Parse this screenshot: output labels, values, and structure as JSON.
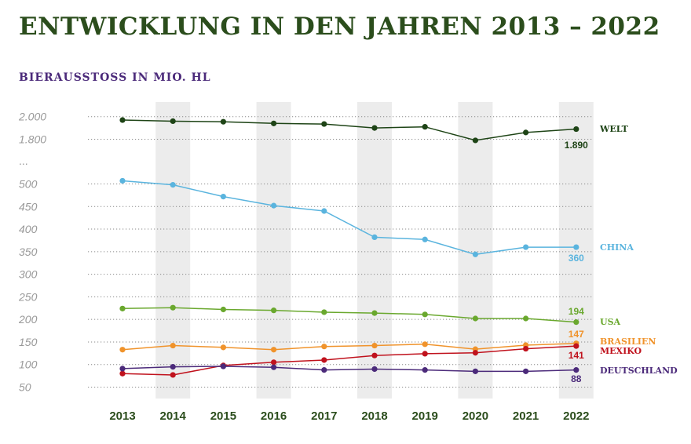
{
  "title": "ENTWICKLUNG IN DEN JAHREN 2013 – 2022",
  "subtitle": "BIERAUSSTOSS IN MIO. HL",
  "chart_data": {
    "type": "line",
    "title": "ENTWICKLUNG IN DEN JAHREN 2013 – 2022",
    "subtitle": "BIERAUSSTOSS IN MIO. HL",
    "ylabel": "Bierausstoss in Mio. hl",
    "x": [
      "2013",
      "2014",
      "2015",
      "2016",
      "2017",
      "2018",
      "2019",
      "2020",
      "2021",
      "2022"
    ],
    "y_axis": {
      "break_label": "...",
      "upper_ticks": [
        {
          "value": 2000,
          "label": "2.000"
        },
        {
          "value": 1800,
          "label": "1.800"
        }
      ],
      "lower_ticks": [
        {
          "value": 500,
          "label": "500"
        },
        {
          "value": 450,
          "label": "450"
        },
        {
          "value": 400,
          "label": "400"
        },
        {
          "value": 350,
          "label": "350"
        },
        {
          "value": 300,
          "label": "300"
        },
        {
          "value": 250,
          "label": "250"
        },
        {
          "value": 200,
          "label": "200"
        },
        {
          "value": 150,
          "label": "150"
        },
        {
          "value": 100,
          "label": "100"
        },
        {
          "value": 50,
          "label": "50"
        }
      ]
    },
    "series": [
      {
        "name": "WELT",
        "color": "#1e4416",
        "segment": "upper",
        "values": [
          1970,
          1960,
          1955,
          1940,
          1935,
          1900,
          1910,
          1790,
          1860,
          1890
        ],
        "end_label": "1.890"
      },
      {
        "name": "CHINA",
        "color": "#5ab4de",
        "segment": "lower",
        "values": [
          507,
          498,
          472,
          452,
          440,
          382,
          377,
          344,
          360,
          360
        ],
        "end_label": "360"
      },
      {
        "name": "USA",
        "color": "#6aa82e",
        "segment": "lower",
        "values": [
          224,
          226,
          222,
          220,
          216,
          214,
          211,
          202,
          202,
          194
        ],
        "end_label": "194"
      },
      {
        "name": "BRASILIEN",
        "color": "#f0932b",
        "segment": "lower",
        "values": [
          133,
          142,
          138,
          133,
          140,
          142,
          145,
          134,
          143,
          147
        ],
        "end_label": "147"
      },
      {
        "name": "MEXIKO",
        "color": "#c0121d",
        "segment": "lower",
        "values": [
          80,
          77,
          98,
          105,
          110,
          120,
          124,
          126,
          135,
          141
        ],
        "end_label": "141"
      },
      {
        "name": "DEUTSCHLAND",
        "color": "#4b2a7a",
        "segment": "lower",
        "values": [
          91,
          95,
          96,
          94,
          88,
          90,
          88,
          85,
          85,
          88
        ],
        "end_label": "88"
      }
    ],
    "shaded_years": [
      "2014",
      "2016",
      "2018",
      "2020",
      "2022"
    ]
  }
}
